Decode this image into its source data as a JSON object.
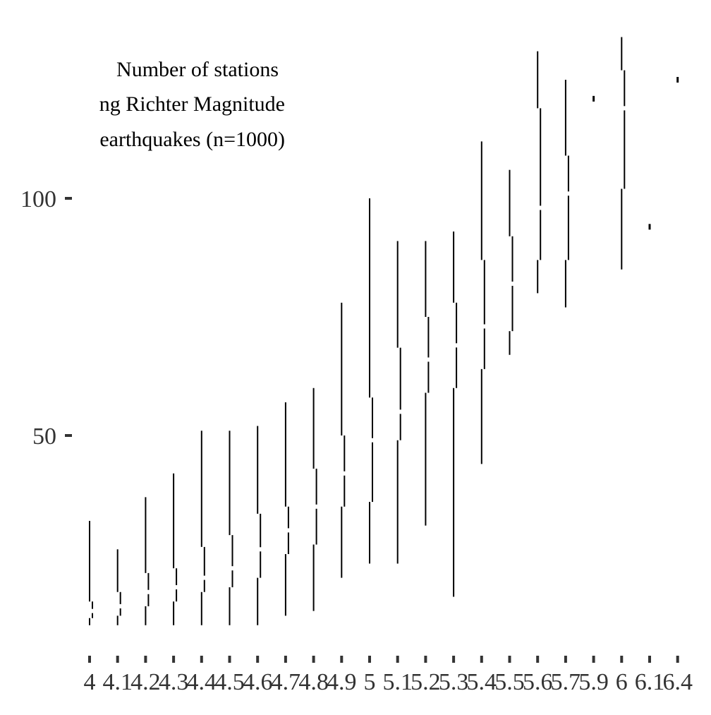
{
  "chart_data": {
    "type": "boxplot",
    "title_lines": [
      "Number of stations",
      "ng Richter Magnitude",
      "earthquakes (n=1000)"
    ],
    "xlabel": "",
    "ylabel": "",
    "x_ticks": [
      "4",
      "4.1",
      "4.2",
      "4.3",
      "4.4",
      "4.5",
      "4.6",
      "4.7",
      "4.8",
      "4.9",
      "5",
      "5.1",
      "5.2",
      "5.3",
      "5.4",
      "5.5",
      "5.6",
      "5.7",
      "5.9",
      "6",
      "6.1",
      "6.4"
    ],
    "y_ticks": [
      50,
      100
    ],
    "ylim": [
      2,
      135
    ],
    "grid": false,
    "boxes": [
      {
        "x": "4",
        "min": 10,
        "q1": 11.5,
        "median": 13,
        "q3": 15,
        "max": 32
      },
      {
        "x": "4.1",
        "min": 10,
        "q1": 12,
        "median": 14,
        "q3": 17,
        "max": 26
      },
      {
        "x": "4.2",
        "min": 10,
        "q1": 14,
        "median": 17,
        "q3": 21,
        "max": 37
      },
      {
        "x": "4.3",
        "min": 10,
        "q1": 15,
        "median": 18,
        "q3": 22,
        "max": 42
      },
      {
        "x": "4.4",
        "min": 10,
        "q1": 17,
        "median": 20,
        "q3": 26.5,
        "max": 51
      },
      {
        "x": "4.5",
        "min": 10,
        "q1": 18,
        "median": 22,
        "q3": 29,
        "max": 51
      },
      {
        "x": "4.6",
        "min": 10,
        "q1": 20,
        "median": 26,
        "q3": 33.5,
        "max": 52
      },
      {
        "x": "4.7",
        "min": 12,
        "q1": 25,
        "median": 30,
        "q3": 35,
        "max": 57
      },
      {
        "x": "4.8",
        "min": 13,
        "q1": 27,
        "median": 35,
        "q3": 43,
        "max": 60
      },
      {
        "x": "4.9",
        "min": 20,
        "q1": 35,
        "median": 42,
        "q3": 50,
        "max": 78
      },
      {
        "x": "5",
        "min": 23,
        "q1": 36,
        "median": 49,
        "q3": 58,
        "max": 100
      },
      {
        "x": "5.1",
        "min": 23,
        "q1": 49,
        "median": 55,
        "q3": 68.5,
        "max": 91
      },
      {
        "x": "5.2",
        "min": 31,
        "q1": 59,
        "median": 66,
        "q3": 75,
        "max": 91
      },
      {
        "x": "5.3",
        "min": 16,
        "q1": 60,
        "median": 69,
        "q3": 78,
        "max": 93
      },
      {
        "x": "5.4",
        "min": 44,
        "q1": 64,
        "median": 73,
        "q3": 87,
        "max": 112
      },
      {
        "x": "5.5",
        "min": 67,
        "q1": 72,
        "median": 82,
        "q3": 92,
        "max": 106
      },
      {
        "x": "5.6",
        "min": 80,
        "q1": 87,
        "median": 98,
        "q3": 119,
        "max": 131
      },
      {
        "x": "5.7",
        "min": 77,
        "q1": 87,
        "median": 101,
        "q3": 109,
        "max": 125
      },
      {
        "x": "5.9",
        "min": 121,
        "q1": 121,
        "median": 121,
        "q3": 121,
        "max": 121
      },
      {
        "x": "6",
        "min": 85,
        "q1": 102,
        "median": 119,
        "q3": 127,
        "max": 134
      },
      {
        "x": "6.1",
        "min": 94,
        "q1": 94,
        "median": 94,
        "q3": 94,
        "max": 94
      },
      {
        "x": "6.4",
        "min": 125,
        "q1": 125,
        "median": 125,
        "q3": 125,
        "max": 125
      }
    ]
  }
}
